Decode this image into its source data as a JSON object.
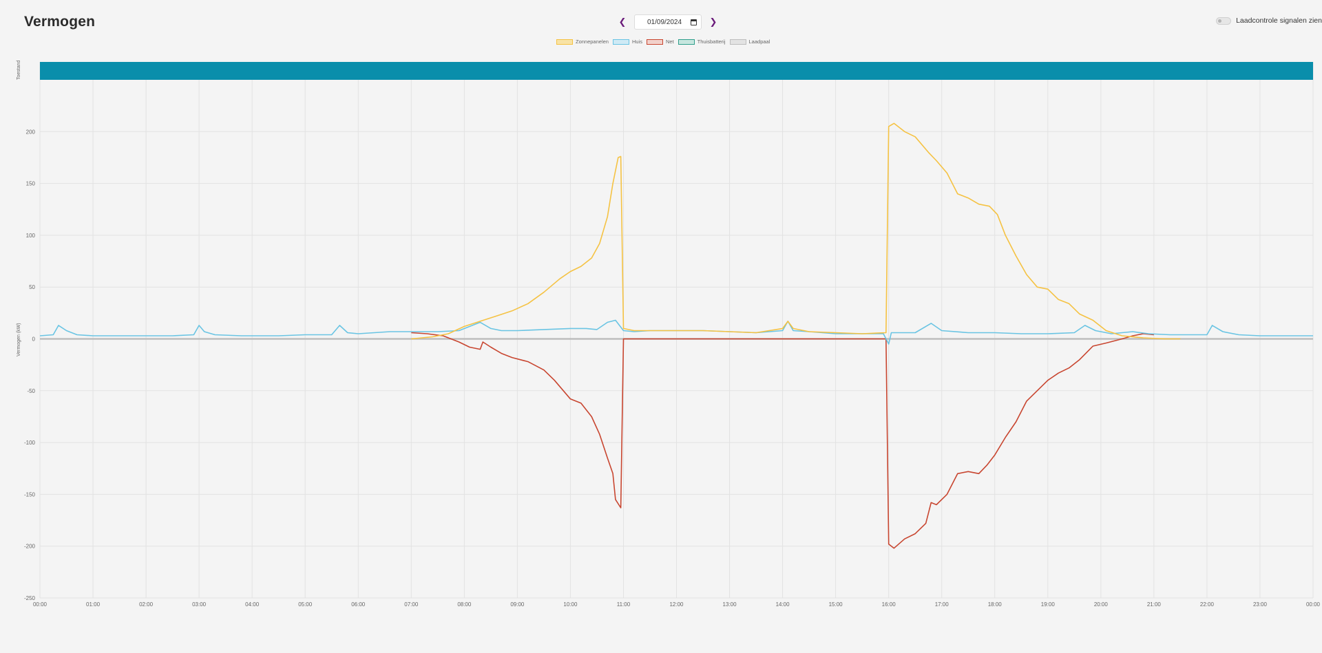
{
  "header": {
    "title": "Vermogen",
    "date_value": "01/09/2024",
    "prev_icon": "chevron-left-icon",
    "next_icon": "chevron-right-icon",
    "toggle_label": "Laadcontrole signalen zien",
    "toggle_on": false
  },
  "legend": [
    {
      "label": "Zonnepanelen",
      "color": "#f5c242",
      "fill": "#f8e3a6"
    },
    {
      "label": "Huis",
      "color": "#69c4e3",
      "fill": "#cfeaf5"
    },
    {
      "label": "Net",
      "color": "#c8452f",
      "fill": "#f2d1cb"
    },
    {
      "label": "Thuisbatterij",
      "color": "#2e9e8b",
      "fill": "#c7e6df"
    },
    {
      "label": "Laadpaal",
      "color": "#bdbdbd",
      "fill": "#e3e3e3"
    }
  ],
  "chart_data": {
    "type": "line",
    "status_band": {
      "label": "Toestand",
      "color": "#0a8eab"
    },
    "ylabel": "Vermogen (kW)",
    "ylim": [
      -250,
      250
    ],
    "yticks": [
      200,
      150,
      100,
      50,
      0,
      -50,
      -100,
      -150,
      -200,
      -250
    ],
    "xticks": [
      "00:00",
      "01:00",
      "02:00",
      "03:00",
      "04:00",
      "05:00",
      "06:00",
      "07:00",
      "08:00",
      "09:00",
      "10:00",
      "11:00",
      "12:00",
      "13:00",
      "14:00",
      "15:00",
      "16:00",
      "17:00",
      "18:00",
      "19:00",
      "20:00",
      "21:00",
      "22:00",
      "23:00",
      "00:00"
    ],
    "grid": true,
    "series": [
      {
        "name": "Zonnepanelen",
        "color": "#f5c242",
        "points": [
          [
            7.0,
            0
          ],
          [
            7.4,
            2
          ],
          [
            7.7,
            5
          ],
          [
            8.0,
            12
          ],
          [
            8.3,
            17
          ],
          [
            8.6,
            22
          ],
          [
            8.9,
            27
          ],
          [
            9.2,
            34
          ],
          [
            9.5,
            45
          ],
          [
            9.8,
            58
          ],
          [
            10.0,
            65
          ],
          [
            10.2,
            70
          ],
          [
            10.4,
            78
          ],
          [
            10.55,
            92
          ],
          [
            10.7,
            118
          ],
          [
            10.8,
            150
          ],
          [
            10.9,
            175
          ],
          [
            10.95,
            176
          ],
          [
            11.0,
            10
          ],
          [
            11.2,
            8
          ],
          [
            11.5,
            8
          ],
          [
            12.0,
            8
          ],
          [
            12.5,
            8
          ],
          [
            13.0,
            7
          ],
          [
            13.5,
            6
          ],
          [
            14.0,
            10
          ],
          [
            14.1,
            17
          ],
          [
            14.2,
            10
          ],
          [
            14.5,
            7
          ],
          [
            15.0,
            6
          ],
          [
            15.5,
            5
          ],
          [
            15.95,
            6
          ],
          [
            16.0,
            205
          ],
          [
            16.1,
            208
          ],
          [
            16.3,
            200
          ],
          [
            16.5,
            195
          ],
          [
            16.75,
            180
          ],
          [
            16.9,
            172
          ],
          [
            17.1,
            160
          ],
          [
            17.3,
            140
          ],
          [
            17.5,
            136
          ],
          [
            17.7,
            130
          ],
          [
            17.9,
            128
          ],
          [
            18.05,
            120
          ],
          [
            18.2,
            100
          ],
          [
            18.4,
            80
          ],
          [
            18.6,
            62
          ],
          [
            18.8,
            50
          ],
          [
            19.0,
            48
          ],
          [
            19.2,
            38
          ],
          [
            19.4,
            34
          ],
          [
            19.6,
            24
          ],
          [
            19.85,
            18
          ],
          [
            20.1,
            8
          ],
          [
            20.4,
            3
          ],
          [
            20.8,
            1
          ],
          [
            21.2,
            0
          ],
          [
            21.5,
            0
          ]
        ]
      },
      {
        "name": "Huis",
        "color": "#69c4e3",
        "points": [
          [
            0.0,
            3
          ],
          [
            0.25,
            4
          ],
          [
            0.35,
            13
          ],
          [
            0.5,
            8
          ],
          [
            0.7,
            4
          ],
          [
            1.0,
            3
          ],
          [
            1.5,
            3
          ],
          [
            2.0,
            3
          ],
          [
            2.5,
            3
          ],
          [
            2.9,
            4
          ],
          [
            3.0,
            13
          ],
          [
            3.1,
            7
          ],
          [
            3.3,
            4
          ],
          [
            3.8,
            3
          ],
          [
            4.5,
            3
          ],
          [
            5.0,
            4
          ],
          [
            5.5,
            4
          ],
          [
            5.65,
            13
          ],
          [
            5.8,
            6
          ],
          [
            6.0,
            5
          ],
          [
            6.3,
            6
          ],
          [
            6.6,
            7
          ],
          [
            7.0,
            7
          ],
          [
            7.5,
            7
          ],
          [
            7.9,
            8
          ],
          [
            8.3,
            16
          ],
          [
            8.5,
            10
          ],
          [
            8.7,
            8
          ],
          [
            9.0,
            8
          ],
          [
            9.5,
            9
          ],
          [
            10.0,
            10
          ],
          [
            10.3,
            10
          ],
          [
            10.5,
            9
          ],
          [
            10.7,
            16
          ],
          [
            10.85,
            18
          ],
          [
            11.0,
            8
          ],
          [
            11.2,
            7
          ],
          [
            11.5,
            8
          ],
          [
            12.0,
            8
          ],
          [
            12.5,
            8
          ],
          [
            13.0,
            7
          ],
          [
            13.5,
            6
          ],
          [
            14.0,
            8
          ],
          [
            14.1,
            17
          ],
          [
            14.2,
            8
          ],
          [
            14.5,
            7
          ],
          [
            15.0,
            5
          ],
          [
            15.5,
            5
          ],
          [
            15.9,
            5
          ],
          [
            16.0,
            -5
          ],
          [
            16.05,
            6
          ],
          [
            16.5,
            6
          ],
          [
            16.8,
            15
          ],
          [
            17.0,
            8
          ],
          [
            17.5,
            6
          ],
          [
            18.0,
            6
          ],
          [
            18.5,
            5
          ],
          [
            19.0,
            5
          ],
          [
            19.5,
            6
          ],
          [
            19.7,
            13
          ],
          [
            19.9,
            8
          ],
          [
            20.2,
            5
          ],
          [
            20.6,
            7
          ],
          [
            20.9,
            5
          ],
          [
            21.3,
            4
          ],
          [
            22.0,
            4
          ],
          [
            22.1,
            13
          ],
          [
            22.3,
            7
          ],
          [
            22.6,
            4
          ],
          [
            23.0,
            3
          ],
          [
            23.5,
            3
          ],
          [
            24.0,
            3
          ]
        ]
      },
      {
        "name": "Net",
        "color": "#c8452f",
        "points": [
          [
            7.0,
            6
          ],
          [
            7.3,
            5
          ],
          [
            7.6,
            3
          ],
          [
            7.9,
            -3
          ],
          [
            8.1,
            -8
          ],
          [
            8.3,
            -10
          ],
          [
            8.35,
            -3
          ],
          [
            8.5,
            -8
          ],
          [
            8.7,
            -14
          ],
          [
            8.9,
            -18
          ],
          [
            9.2,
            -22
          ],
          [
            9.5,
            -30
          ],
          [
            9.7,
            -40
          ],
          [
            10.0,
            -58
          ],
          [
            10.2,
            -62
          ],
          [
            10.4,
            -75
          ],
          [
            10.55,
            -92
          ],
          [
            10.7,
            -115
          ],
          [
            10.8,
            -130
          ],
          [
            10.85,
            -155
          ],
          [
            10.95,
            -163
          ],
          [
            11.0,
            0
          ],
          [
            11.3,
            0
          ],
          [
            12.0,
            0
          ],
          [
            13.0,
            0
          ],
          [
            14.0,
            0
          ],
          [
            15.0,
            0
          ],
          [
            15.95,
            0
          ],
          [
            16.0,
            -198
          ],
          [
            16.1,
            -202
          ],
          [
            16.3,
            -193
          ],
          [
            16.5,
            -188
          ],
          [
            16.7,
            -178
          ],
          [
            16.8,
            -158
          ],
          [
            16.9,
            -160
          ],
          [
            17.1,
            -150
          ],
          [
            17.3,
            -130
          ],
          [
            17.5,
            -128
          ],
          [
            17.7,
            -130
          ],
          [
            17.85,
            -122
          ],
          [
            18.0,
            -112
          ],
          [
            18.2,
            -95
          ],
          [
            18.4,
            -80
          ],
          [
            18.6,
            -60
          ],
          [
            18.8,
            -50
          ],
          [
            19.0,
            -40
          ],
          [
            19.2,
            -33
          ],
          [
            19.4,
            -28
          ],
          [
            19.6,
            -20
          ],
          [
            19.85,
            -7
          ],
          [
            20.1,
            -4
          ],
          [
            20.4,
            0
          ],
          [
            20.6,
            3
          ],
          [
            20.8,
            5
          ],
          [
            21.0,
            4
          ]
        ]
      },
      {
        "name": "Laadpaal",
        "color": "#bdbdbd",
        "points": [
          [
            0.0,
            0
          ],
          [
            24.0,
            0
          ]
        ]
      }
    ]
  }
}
